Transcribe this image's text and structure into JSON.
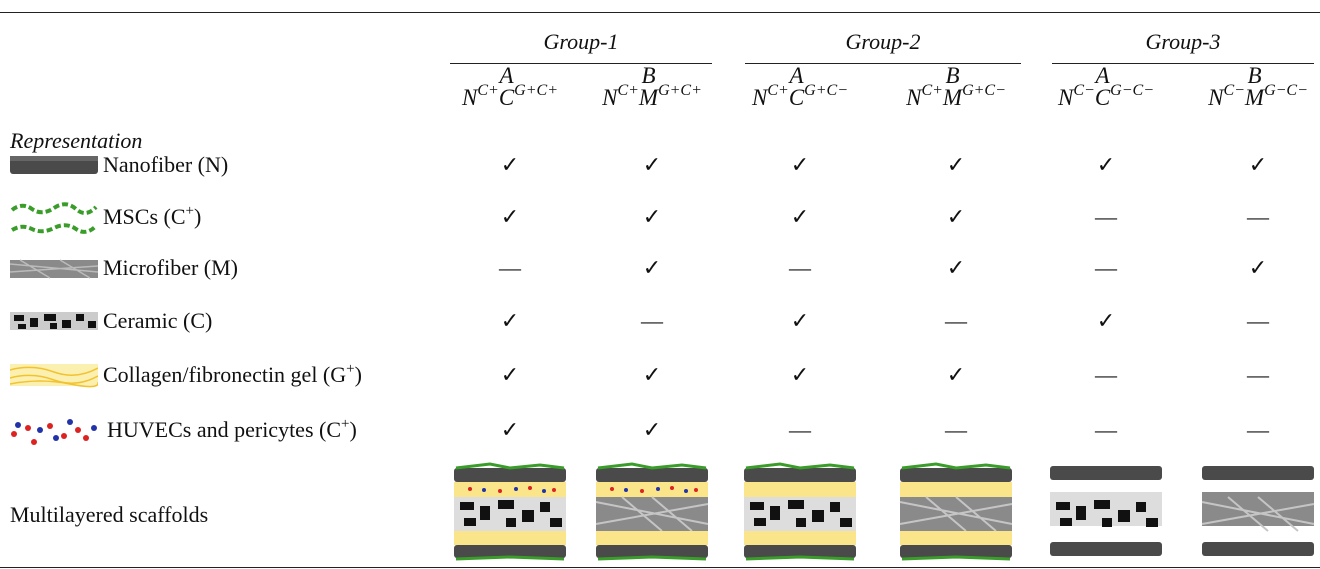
{
  "header": {
    "groups": [
      "Group-1",
      "Group-2",
      "Group-3"
    ],
    "representation": "Representation",
    "columns": [
      {
        "letter": "A",
        "n": "N",
        "n_sup": "C+",
        "m": "C",
        "m_sup": "G+C+"
      },
      {
        "letter": "B",
        "n": "N",
        "n_sup": "C+",
        "m": "M",
        "m_sup": "G+C+"
      },
      {
        "letter": "A",
        "n": "N",
        "n_sup": "C+",
        "m": "C",
        "m_sup": "G+C−"
      },
      {
        "letter": "B",
        "n": "N",
        "n_sup": "C+",
        "m": "M",
        "m_sup": "G+C−"
      },
      {
        "letter": "A",
        "n": "N",
        "n_sup": "C−",
        "m": "C",
        "m_sup": "G−C−"
      },
      {
        "letter": "B",
        "n": "N",
        "n_sup": "C−",
        "m": "M",
        "m_sup": "G−C−"
      }
    ]
  },
  "rows": [
    {
      "label": "Nanofiber (N)",
      "cells": [
        "✓",
        "✓",
        "✓",
        "✓",
        "✓",
        "✓"
      ]
    },
    {
      "label": "MSCs (C",
      "label_sup": "+",
      "label_end": ")",
      "cells": [
        "✓",
        "✓",
        "✓",
        "✓",
        "—",
        "—"
      ]
    },
    {
      "label": "Microfiber (M)",
      "cells": [
        "—",
        "✓",
        "—",
        "✓",
        "—",
        "✓"
      ]
    },
    {
      "label": "Ceramic (C)",
      "cells": [
        "✓",
        "—",
        "✓",
        "—",
        "✓",
        "—"
      ]
    },
    {
      "label": "Collagen/fibronectin gel (G",
      "label_sup": "+",
      "label_end": ")",
      "cells": [
        "✓",
        "✓",
        "✓",
        "✓",
        "—",
        "—"
      ]
    },
    {
      "label": "HUVECs and pericytes (C",
      "label_sup": "+",
      "label_end": ")",
      "cells": [
        "✓",
        "✓",
        "—",
        "—",
        "—",
        "—"
      ]
    }
  ],
  "footer_row": {
    "label": "Multilayered scaffolds"
  }
}
